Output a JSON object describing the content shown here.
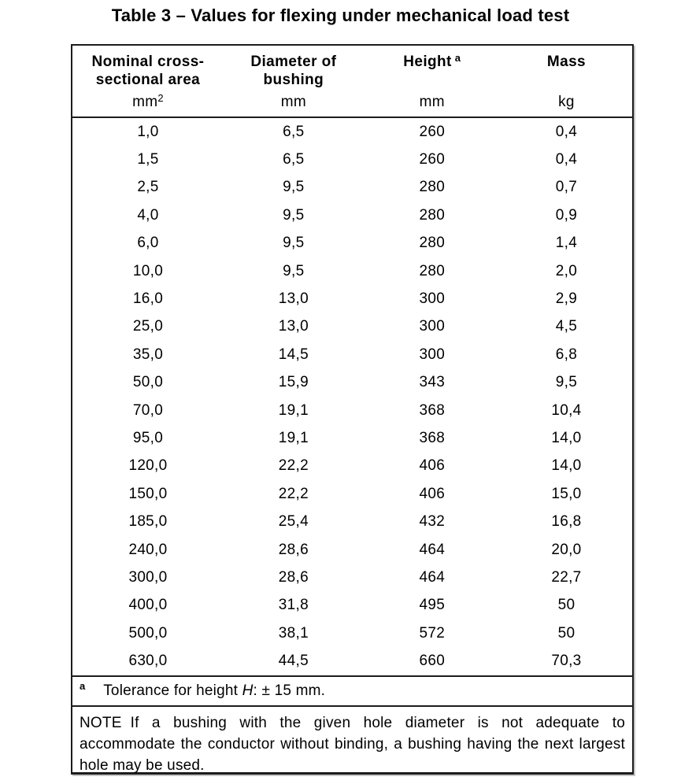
{
  "title": "Table 3 – Values for flexing under mechanical load test",
  "table": {
    "columns": [
      {
        "title": "Nominal cross-\nsectional area",
        "unit": "mm",
        "unit_sup": "2"
      },
      {
        "title": "Diameter of\nbushing",
        "unit": "mm"
      },
      {
        "title": "Height",
        "title_sup": "a",
        "unit": "mm"
      },
      {
        "title": "Mass",
        "unit": "kg"
      }
    ],
    "rows": [
      [
        "1,0",
        "6,5",
        "260",
        "0,4"
      ],
      [
        "1,5",
        "6,5",
        "260",
        "0,4"
      ],
      [
        "2,5",
        "9,5",
        "280",
        "0,7"
      ],
      [
        "4,0",
        "9,5",
        "280",
        "0,9"
      ],
      [
        "6,0",
        "9,5",
        "280",
        "1,4"
      ],
      [
        "10,0",
        "9,5",
        "280",
        "2,0"
      ],
      [
        "16,0",
        "13,0",
        "300",
        "2,9"
      ],
      [
        "25,0",
        "13,0",
        "300",
        "4,5"
      ],
      [
        "35,0",
        "14,5",
        "300",
        "6,8"
      ],
      [
        "50,0",
        "15,9",
        "343",
        "9,5"
      ],
      [
        "70,0",
        "19,1",
        "368",
        "10,4"
      ],
      [
        "95,0",
        "19,1",
        "368",
        "14,0"
      ],
      [
        "120,0",
        "22,2",
        "406",
        "14,0"
      ],
      [
        "150,0",
        "22,2",
        "406",
        "15,0"
      ],
      [
        "185,0",
        "25,4",
        "432",
        "16,8"
      ],
      [
        "240,0",
        "28,6",
        "464",
        "20,0"
      ],
      [
        "300,0",
        "28,6",
        "464",
        "22,7"
      ],
      [
        "400,0",
        "31,8",
        "495",
        "50"
      ],
      [
        "500,0",
        "38,1",
        "572",
        "50"
      ],
      [
        "630,0",
        "44,5",
        "660",
        "70,3"
      ]
    ]
  },
  "footnote": {
    "marker": "a",
    "text_before": "Tolerance for height ",
    "variable": "H",
    "text_after": ": ± 15 mm."
  },
  "note": {
    "label": "NOTE",
    "text": "If a bushing with the given hole diameter is not adequate to accommodate the conductor without binding, a bushing having the next largest hole may be used."
  },
  "colors": {
    "text": "#000000",
    "border": "#1c1c1c",
    "background": "#ffffff"
  }
}
